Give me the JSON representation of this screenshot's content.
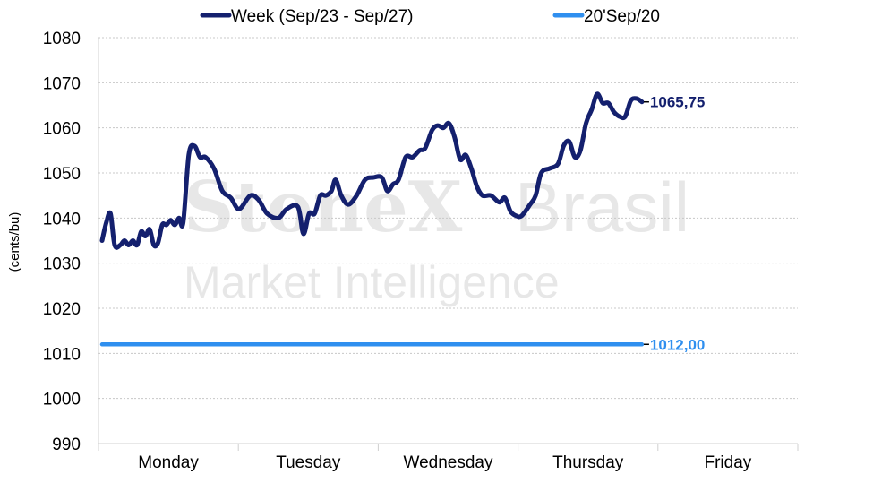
{
  "chart_data": {
    "type": "line",
    "ylabel": "(cents/bu)",
    "ylim": [
      990,
      1080
    ],
    "yticks": [
      990,
      1000,
      1010,
      1020,
      1030,
      1040,
      1050,
      1060,
      1070,
      1080
    ],
    "categories": [
      "Monday",
      "Tuesday",
      "Wednesday",
      "Thursday",
      "Friday"
    ],
    "grid": true,
    "legend_position": "top",
    "series": [
      {
        "name": "Week (Sep/23 - Sep/27)",
        "color": "#14206e",
        "end_label": "1065,75",
        "values": [
          [
            0.0,
            1035
          ],
          [
            0.03,
            1039
          ],
          [
            0.06,
            1041
          ],
          [
            0.09,
            1034
          ],
          [
            0.13,
            1034
          ],
          [
            0.16,
            1035
          ],
          [
            0.19,
            1034
          ],
          [
            0.22,
            1035
          ],
          [
            0.25,
            1034
          ],
          [
            0.28,
            1037
          ],
          [
            0.31,
            1036
          ],
          [
            0.34,
            1037.5
          ],
          [
            0.37,
            1034
          ],
          [
            0.4,
            1034.5
          ],
          [
            0.43,
            1038.5
          ],
          [
            0.46,
            1038.5
          ],
          [
            0.49,
            1039.5
          ],
          [
            0.52,
            1038.5
          ],
          [
            0.55,
            1040
          ],
          [
            0.58,
            1039
          ],
          [
            0.62,
            1054
          ],
          [
            0.66,
            1056
          ],
          [
            0.7,
            1053.5
          ],
          [
            0.74,
            1053.5
          ],
          [
            0.8,
            1051
          ],
          [
            0.86,
            1046
          ],
          [
            0.92,
            1044.5
          ],
          [
            0.98,
            1042
          ],
          [
            1.06,
            1045
          ],
          [
            1.12,
            1044
          ],
          [
            1.18,
            1041
          ],
          [
            1.26,
            1040
          ],
          [
            1.32,
            1042
          ],
          [
            1.4,
            1042.5
          ],
          [
            1.44,
            1036.5
          ],
          [
            1.48,
            1041
          ],
          [
            1.52,
            1041
          ],
          [
            1.56,
            1045
          ],
          [
            1.6,
            1045
          ],
          [
            1.64,
            1046
          ],
          [
            1.67,
            1048.5
          ],
          [
            1.71,
            1045
          ],
          [
            1.76,
            1043
          ],
          [
            1.82,
            1045
          ],
          [
            1.88,
            1048.5
          ],
          [
            1.94,
            1049
          ],
          [
            2.0,
            1049
          ],
          [
            2.04,
            1046
          ],
          [
            2.08,
            1047.5
          ],
          [
            2.12,
            1048.5
          ],
          [
            2.17,
            1053.5
          ],
          [
            2.22,
            1053.5
          ],
          [
            2.27,
            1055
          ],
          [
            2.31,
            1055.5
          ],
          [
            2.36,
            1059.5
          ],
          [
            2.4,
            1060.5
          ],
          [
            2.44,
            1060
          ],
          [
            2.48,
            1061
          ],
          [
            2.52,
            1058
          ],
          [
            2.56,
            1053
          ],
          [
            2.6,
            1054
          ],
          [
            2.64,
            1051
          ],
          [
            2.68,
            1047
          ],
          [
            2.72,
            1045
          ],
          [
            2.78,
            1045
          ],
          [
            2.84,
            1043.5
          ],
          [
            2.88,
            1044.5
          ],
          [
            2.92,
            1041.5
          ],
          [
            2.96,
            1040.5
          ],
          [
            3.0,
            1040.5
          ],
          [
            3.06,
            1043
          ],
          [
            3.1,
            1045
          ],
          [
            3.14,
            1050
          ],
          [
            3.2,
            1051
          ],
          [
            3.26,
            1052
          ],
          [
            3.3,
            1056
          ],
          [
            3.34,
            1057
          ],
          [
            3.38,
            1053.5
          ],
          [
            3.42,
            1055
          ],
          [
            3.46,
            1061
          ],
          [
            3.5,
            1064
          ],
          [
            3.54,
            1067.5
          ],
          [
            3.58,
            1065.5
          ],
          [
            3.62,
            1065.5
          ],
          [
            3.66,
            1063.5
          ],
          [
            3.7,
            1062.5
          ],
          [
            3.74,
            1062.5
          ],
          [
            3.78,
            1066
          ],
          [
            3.82,
            1066.5
          ],
          [
            3.86,
            1065.75
          ]
        ]
      },
      {
        "name": "20'Sep/20",
        "color": "#2f8fef",
        "end_label": "1012,00",
        "values": [
          [
            0.0,
            1012
          ],
          [
            3.86,
            1012
          ]
        ]
      }
    ],
    "watermark": [
      "StoneX Brasil",
      "Market Intelligence"
    ]
  }
}
